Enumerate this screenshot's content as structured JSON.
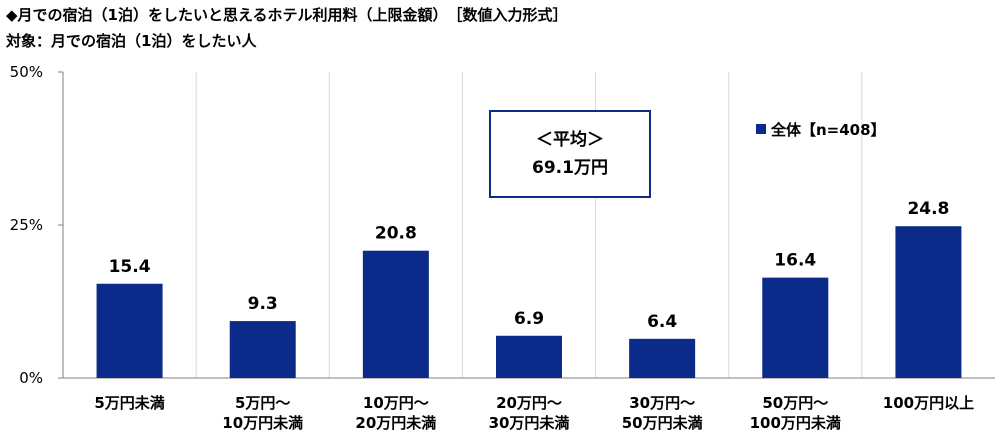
{
  "title": "◆月での宿泊（1泊）をしたいと思えるホテル利用料（上限金額）　［数値入力形式］",
  "subtitle": "対象：月での宿泊（1泊）をしたい人",
  "average": {
    "label": "＜平均＞",
    "value": "69.1万円"
  },
  "chart_data": {
    "type": "bar",
    "categories": [
      [
        "5万円未満"
      ],
      [
        "5万円～",
        "10万円未満"
      ],
      [
        "10万円～",
        "20万円未満"
      ],
      [
        "20万円～",
        "30万円未満"
      ],
      [
        "30万円～",
        "50万円未満"
      ],
      [
        "50万円～",
        "100万円未満"
      ],
      [
        "100万円以上"
      ]
    ],
    "series": [
      {
        "name": "全体【n=408】",
        "values": [
          15.4,
          9.3,
          20.8,
          6.9,
          6.4,
          16.4,
          24.8
        ]
      }
    ],
    "value_labels": [
      "15.4",
      "9.3",
      "20.8",
      "6.9",
      "6.4",
      "16.4",
      "24.8"
    ],
    "ylim": [
      0,
      50
    ],
    "yticks": [
      0,
      25,
      50
    ],
    "ytick_labels": [
      "0%",
      "25%",
      "50%"
    ],
    "grid": "vertical-category-separators",
    "legend": "top-right",
    "bar_color": "#0b2a8a"
  }
}
